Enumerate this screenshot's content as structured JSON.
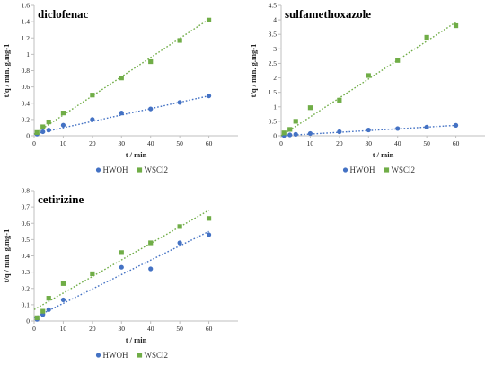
{
  "chart_data": [
    {
      "type": "scatter",
      "title": "diclofenac",
      "xlabel": "t / min",
      "ylabel": "t/q / min. g.mg-1",
      "xlim": [
        0,
        70
      ],
      "ylim": [
        0,
        1.6
      ],
      "xticks": [
        0,
        10,
        20,
        30,
        40,
        50,
        60
      ],
      "yticks": [
        0,
        0.2,
        0.4,
        0.6,
        0.8,
        1,
        1.2,
        1.4,
        1.6
      ],
      "ytick_labels": [
        "0",
        "0.2",
        "0.4",
        "0.6",
        "0.8",
        "1",
        "1.2",
        "1.4",
        "1.6"
      ],
      "legend_position": "bottom",
      "series": [
        {
          "name": "HWOH",
          "color": "#4472c4",
          "marker": "circle",
          "x": [
            1,
            3,
            5,
            10,
            20,
            30,
            40,
            50,
            60
          ],
          "y": [
            0.02,
            0.05,
            0.07,
            0.13,
            0.2,
            0.28,
            0.33,
            0.41,
            0.49
          ],
          "trend": [
            [
              0,
              0.02
            ],
            [
              60,
              0.49
            ]
          ]
        },
        {
          "name": "WSCl2",
          "color": "#70ad47",
          "marker": "square",
          "x": [
            1,
            3,
            5,
            10,
            20,
            30,
            40,
            50,
            60
          ],
          "y": [
            0.04,
            0.11,
            0.17,
            0.28,
            0.5,
            0.71,
            0.91,
            1.17,
            1.42
          ],
          "trend": [
            [
              0,
              0.02
            ],
            [
              60,
              1.43
            ]
          ]
        }
      ]
    },
    {
      "type": "scatter",
      "title": "sulfamethoxazole",
      "xlabel": "t / min",
      "ylabel": "t/q / min. g.mg-1",
      "xlim": [
        0,
        70
      ],
      "ylim": [
        0,
        4.5
      ],
      "xticks": [
        0,
        10,
        20,
        30,
        40,
        50,
        60
      ],
      "yticks": [
        0,
        0.5,
        1,
        1.5,
        2,
        2.5,
        3,
        3.5,
        4,
        4.5
      ],
      "ytick_labels": [
        "0",
        "0.5",
        "1",
        "1.5",
        "2",
        "2.5",
        "3",
        "3.5",
        "4",
        "4.5"
      ],
      "legend_position": "bottom",
      "series": [
        {
          "name": "HWOH",
          "color": "#4472c4",
          "marker": "circle",
          "x": [
            1,
            3,
            5,
            10,
            20,
            30,
            40,
            50,
            60
          ],
          "y": [
            0.01,
            0.03,
            0.05,
            0.08,
            0.14,
            0.2,
            0.25,
            0.3,
            0.36
          ],
          "trend": [
            [
              0,
              0.0
            ],
            [
              60,
              0.36
            ]
          ]
        },
        {
          "name": "WSCl2",
          "color": "#70ad47",
          "marker": "square",
          "x": [
            1,
            3,
            5,
            10,
            20,
            30,
            40,
            50,
            60
          ],
          "y": [
            0.1,
            0.22,
            0.5,
            0.97,
            1.23,
            2.08,
            2.6,
            3.4,
            3.8
          ],
          "trend": [
            [
              0,
              0.0
            ],
            [
              60,
              3.92
            ]
          ]
        }
      ]
    },
    {
      "type": "scatter",
      "title": "cetirizine",
      "xlabel": "t / min",
      "ylabel": "t/q / min. g.mg-1",
      "xlim": [
        0,
        70
      ],
      "ylim": [
        0,
        0.8
      ],
      "xticks": [
        0,
        10,
        20,
        30,
        40,
        50,
        60
      ],
      "yticks": [
        0,
        0.1,
        0.2,
        0.3,
        0.4,
        0.5,
        0.6,
        0.7,
        0.8
      ],
      "ytick_labels": [
        "0",
        "0.1",
        "0.2",
        "0.3",
        "0.4",
        "0.5",
        "0.6",
        "0.7",
        "0.8"
      ],
      "legend_position": "bottom",
      "series": [
        {
          "name": "HWOH",
          "color": "#4472c4",
          "marker": "circle",
          "x": [
            1,
            3,
            5,
            10,
            30,
            40,
            50,
            60
          ],
          "y": [
            0.01,
            0.04,
            0.07,
            0.13,
            0.33,
            0.32,
            0.48,
            0.53
          ],
          "trend": [
            [
              0,
              0.02
            ],
            [
              60,
              0.55
            ]
          ]
        },
        {
          "name": "WSCl2",
          "color": "#70ad47",
          "marker": "square",
          "x": [
            1,
            3,
            5,
            10,
            20,
            30,
            40,
            50,
            60
          ],
          "y": [
            0.02,
            0.06,
            0.14,
            0.23,
            0.29,
            0.42,
            0.48,
            0.58,
            0.63
          ],
          "trend": [
            [
              0,
              0.07
            ],
            [
              60,
              0.68
            ]
          ]
        }
      ]
    }
  ]
}
